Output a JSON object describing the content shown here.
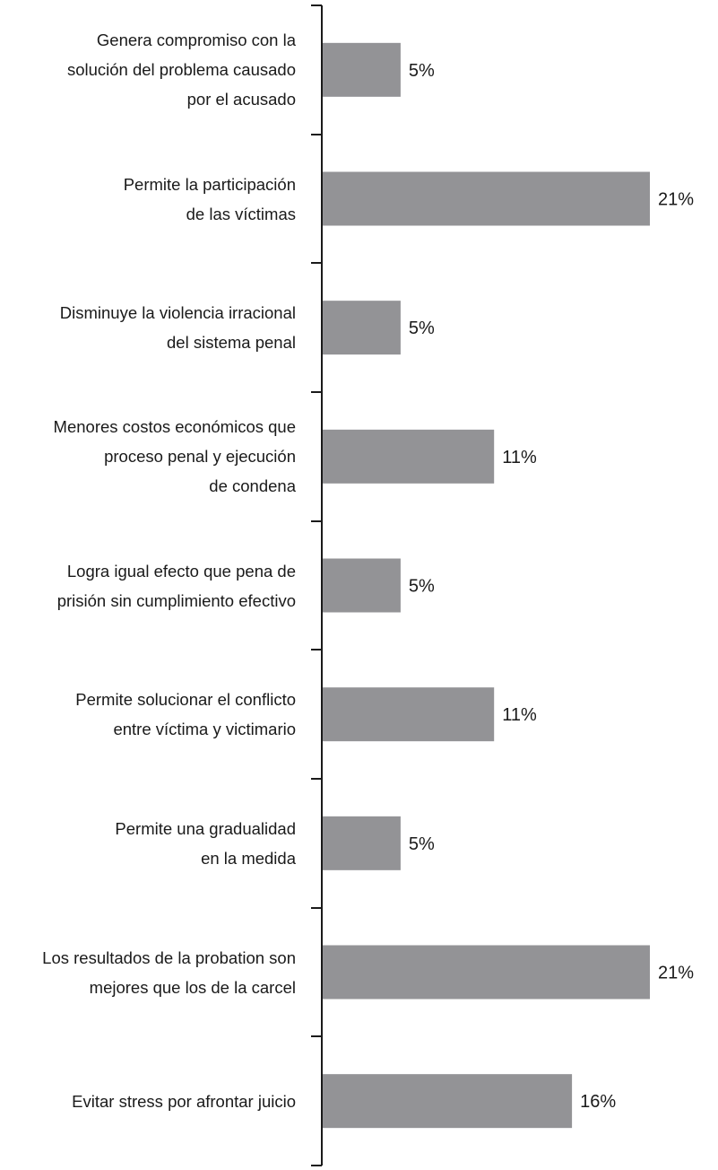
{
  "chart_data": {
    "type": "bar",
    "orientation": "horizontal",
    "categories": [
      "Genera compromiso con la\nsolución del problema causado\npor el acusado",
      "Permite la participación\nde las víctimas",
      "Disminuye la violencia irracional\ndel sistema penal",
      "Menores costos económicos que\nproceso penal y ejecución\nde condena",
      "Logra igual efecto que pena de\nprisión sin cumplimiento efectivo",
      "Permite solucionar el conflicto\nentre víctima y victimario",
      "Permite una gradualidad\nen la medida",
      "Los resultados de la probation son\nmejores que los de la carcel",
      "Evitar stress por afrontar juicio"
    ],
    "values": [
      5,
      21,
      5,
      11,
      5,
      11,
      5,
      21,
      16
    ],
    "value_labels": [
      "5%",
      "21%",
      "5%",
      "11%",
      "5%",
      "11%",
      "5%",
      "21%",
      "16%"
    ],
    "title": "",
    "xlabel": "",
    "ylabel": "",
    "xlim": [
      0,
      21
    ],
    "grid": false,
    "legend": "none",
    "bar_color": "#939396",
    "axis_color": "#1a1a1a"
  }
}
